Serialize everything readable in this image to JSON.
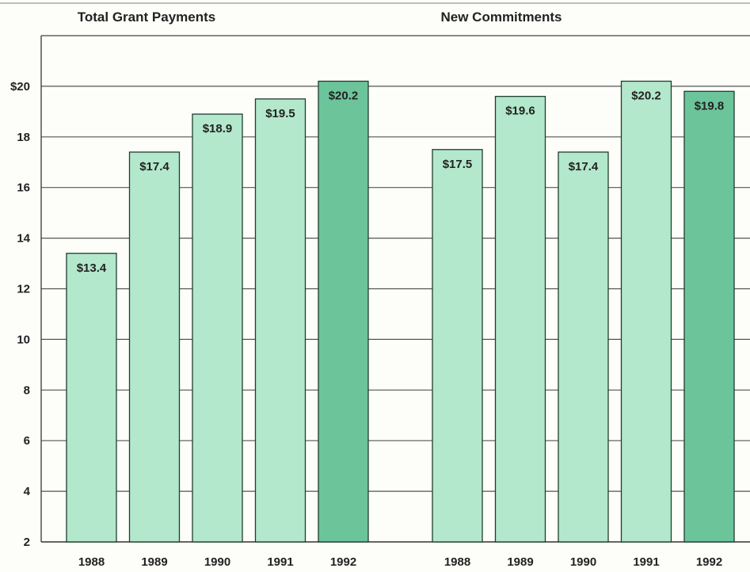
{
  "chart_data": [
    {
      "type": "bar",
      "title": "Total Grant Payments",
      "categories": [
        "1988",
        "1989",
        "1990",
        "1991",
        "1992"
      ],
      "values": [
        13.4,
        17.4,
        18.9,
        19.5,
        20.2
      ],
      "data_labels": [
        "$13.4",
        "$17.4",
        "$18.9",
        "$19.5",
        "$20.2"
      ],
      "highlight_index": 4,
      "ylim": [
        2,
        22
      ],
      "yticks": [
        2,
        4,
        6,
        8,
        10,
        12,
        14,
        16,
        18,
        20
      ],
      "ytick_labels": [
        "2",
        "4",
        "6",
        "8",
        "10",
        "12",
        "14",
        "16",
        "18",
        "$20"
      ],
      "grid": true
    },
    {
      "type": "bar",
      "title": "New Commitments",
      "categories": [
        "1988",
        "1989",
        "1990",
        "1991",
        "1992"
      ],
      "values": [
        17.5,
        19.6,
        17.4,
        20.2,
        19.8
      ],
      "data_labels": [
        "$17.5",
        "$19.6",
        "$17.4",
        "$20.2",
        "$19.8"
      ],
      "highlight_index": 4,
      "ylim": [
        2,
        22
      ],
      "grid": true
    }
  ],
  "colors": {
    "bar": "#b3e8cc",
    "bar_highlight": "#6cc49b",
    "bar_stroke": "#1e3d2c",
    "grid": "#555555",
    "frame": "#444444"
  }
}
